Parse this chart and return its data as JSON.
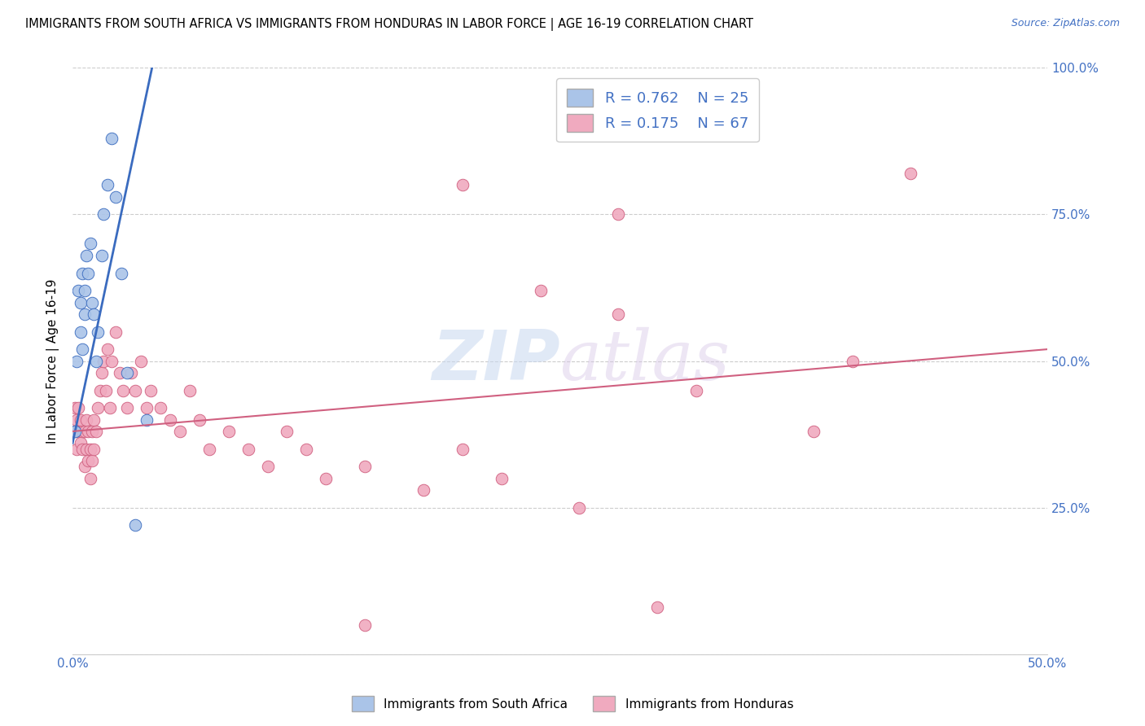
{
  "title": "IMMIGRANTS FROM SOUTH AFRICA VS IMMIGRANTS FROM HONDURAS IN LABOR FORCE | AGE 16-19 CORRELATION CHART",
  "source_text": "Source: ZipAtlas.com",
  "ylabel": "In Labor Force | Age 16-19",
  "xlim": [
    0.0,
    0.5
  ],
  "ylim": [
    0.0,
    1.0
  ],
  "watermark_zip": "ZIP",
  "watermark_atlas": "atlas",
  "color_sa": "#aac4e8",
  "color_hn": "#f0aabf",
  "line_color_sa": "#3a6bbf",
  "line_color_hn": "#d06080",
  "background_color": "#ffffff",
  "grid_color": "#cccccc",
  "south_africa_x": [
    0.001,
    0.002,
    0.003,
    0.004,
    0.004,
    0.005,
    0.005,
    0.006,
    0.006,
    0.007,
    0.008,
    0.009,
    0.01,
    0.011,
    0.012,
    0.013,
    0.015,
    0.016,
    0.018,
    0.02,
    0.022,
    0.025,
    0.028,
    0.032,
    0.038
  ],
  "south_africa_y": [
    0.38,
    0.5,
    0.62,
    0.55,
    0.6,
    0.52,
    0.65,
    0.58,
    0.62,
    0.68,
    0.65,
    0.7,
    0.6,
    0.58,
    0.5,
    0.55,
    0.68,
    0.75,
    0.8,
    0.88,
    0.78,
    0.65,
    0.48,
    0.22,
    0.4
  ],
  "honduras_x": [
    0.001,
    0.001,
    0.002,
    0.002,
    0.003,
    0.003,
    0.004,
    0.004,
    0.005,
    0.005,
    0.006,
    0.006,
    0.007,
    0.007,
    0.008,
    0.008,
    0.009,
    0.009,
    0.01,
    0.01,
    0.011,
    0.011,
    0.012,
    0.013,
    0.014,
    0.015,
    0.016,
    0.017,
    0.018,
    0.019,
    0.02,
    0.022,
    0.024,
    0.026,
    0.028,
    0.03,
    0.032,
    0.035,
    0.038,
    0.04,
    0.045,
    0.05,
    0.055,
    0.06,
    0.065,
    0.07,
    0.08,
    0.09,
    0.1,
    0.11,
    0.12,
    0.13,
    0.15,
    0.18,
    0.2,
    0.22,
    0.24,
    0.26,
    0.28,
    0.3,
    0.32,
    0.38,
    0.4,
    0.43,
    0.28,
    0.2,
    0.15
  ],
  "honduras_y": [
    0.38,
    0.42,
    0.35,
    0.4,
    0.38,
    0.42,
    0.36,
    0.4,
    0.35,
    0.38,
    0.32,
    0.38,
    0.35,
    0.4,
    0.33,
    0.38,
    0.3,
    0.35,
    0.33,
    0.38,
    0.35,
    0.4,
    0.38,
    0.42,
    0.45,
    0.48,
    0.5,
    0.45,
    0.52,
    0.42,
    0.5,
    0.55,
    0.48,
    0.45,
    0.42,
    0.48,
    0.45,
    0.5,
    0.42,
    0.45,
    0.42,
    0.4,
    0.38,
    0.45,
    0.4,
    0.35,
    0.38,
    0.35,
    0.32,
    0.38,
    0.35,
    0.3,
    0.32,
    0.28,
    0.35,
    0.3,
    0.62,
    0.25,
    0.58,
    0.08,
    0.45,
    0.38,
    0.5,
    0.82,
    0.75,
    0.8,
    0.05
  ],
  "sa_line_x": [
    0.0,
    0.042
  ],
  "sa_line_y": [
    0.36,
    1.02
  ],
  "hn_line_x": [
    0.0,
    0.5
  ],
  "hn_line_y": [
    0.38,
    0.52
  ]
}
